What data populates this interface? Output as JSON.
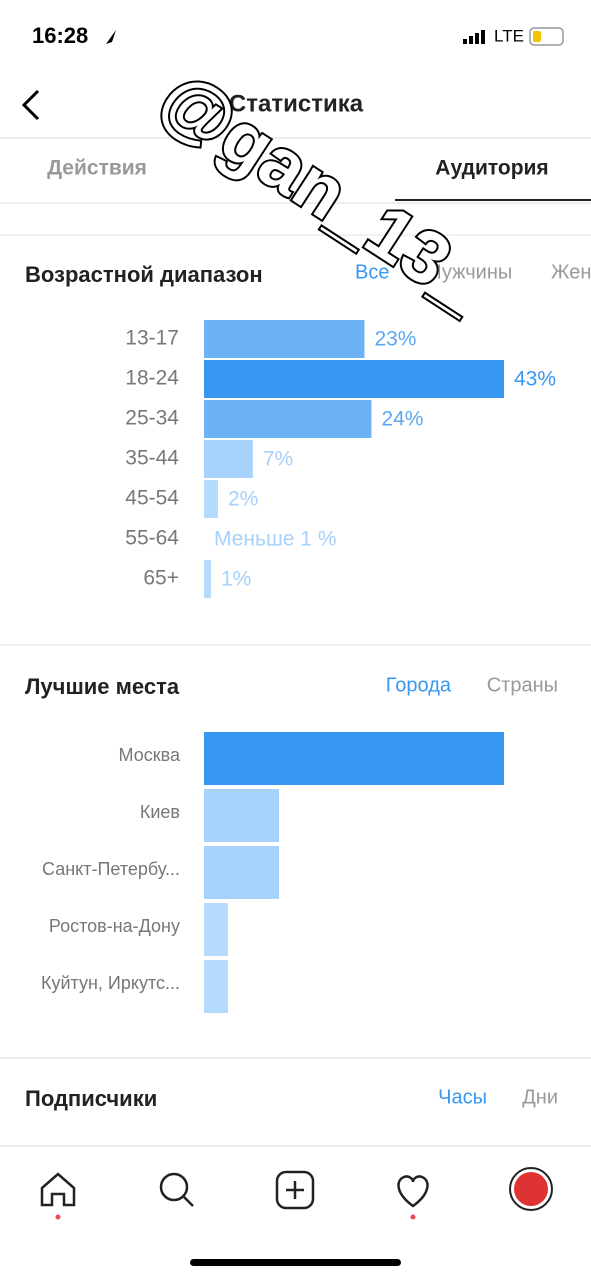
{
  "status_bar": {
    "time": "16:28",
    "network": "LTE"
  },
  "header": {
    "title": "Статистика"
  },
  "tabs": [
    "Действия",
    "Аудитория"
  ],
  "age_range": {
    "title": "Возрастной диапазон",
    "filters": [
      "Все",
      "Мужчины",
      "Женщины"
    ],
    "categories": [
      "13-17",
      "18-24",
      "25-34",
      "35-44",
      "45-54",
      "55-64",
      "65+"
    ],
    "values": [
      23,
      43,
      24,
      7,
      2,
      null,
      1
    ],
    "value_labels": [
      "23%",
      "43%",
      "24%",
      "7%",
      "2%",
      "Меньше 1 %",
      "1%"
    ],
    "colors": [
      "#6db2f5",
      "#3897f0",
      "#6db2f5",
      "#a6d1fa",
      "#b6dafb",
      "#b6dafb",
      "#b6dafb"
    ]
  },
  "top_locations": {
    "title": "Лучшие места",
    "filters": [
      "Города",
      "Страны"
    ],
    "categories": [
      "Москва",
      "Киев",
      "Санкт-Петербу...",
      "Ростов-на-Дону",
      "Куйтун, Иркутс..."
    ],
    "values": [
      100,
      25,
      25,
      8,
      8
    ],
    "colors": [
      "#3897f0",
      "#a6d1fa",
      "#a6d1fa",
      "#b6dafb",
      "#b6dafb"
    ]
  },
  "followers": {
    "title": "Подписчики",
    "filters": [
      "Часы",
      "Дни"
    ]
  },
  "watermark": "@gan_13_"
}
